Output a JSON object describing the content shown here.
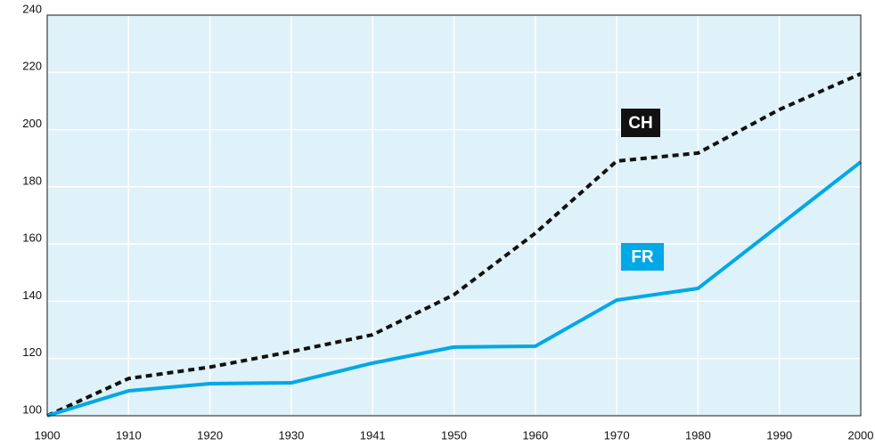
{
  "chart_data": {
    "type": "line",
    "categories": [
      "1900",
      "1910",
      "1920",
      "1930",
      "1941",
      "1950",
      "1960",
      "1970",
      "1980",
      "1990",
      "2000"
    ],
    "series": [
      {
        "name": "CH",
        "color": "#111111",
        "dashed": true,
        "values": [
          100,
          113,
          117,
          122.4,
          128.3,
          142.3,
          163.8,
          189,
          191.8,
          207,
          219.5
        ]
      },
      {
        "name": "FR",
        "color": "#00a8e6",
        "dashed": false,
        "values": [
          100,
          108.7,
          111.2,
          111.5,
          118.4,
          124,
          124.3,
          140.4,
          144.5,
          166.6,
          188.7
        ]
      }
    ],
    "ylim": [
      100,
      240
    ],
    "yticks": [
      100,
      120,
      140,
      160,
      180,
      200,
      220,
      240
    ],
    "grid": true
  }
}
